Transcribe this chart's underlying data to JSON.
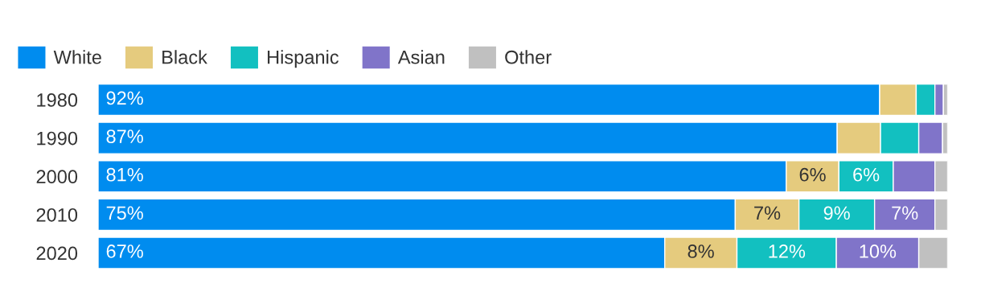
{
  "chart_data": {
    "type": "bar",
    "orientation": "horizontal",
    "stacked": true,
    "legend": "top left",
    "grid": false,
    "categories": [
      "1980",
      "1990",
      "2000",
      "2010",
      "2020"
    ],
    "series": [
      {
        "name": "White",
        "color": "#008cef",
        "values": [
          92,
          87,
          81,
          75,
          66.7
        ],
        "value_labels": [
          "92%",
          "87%",
          "81%",
          "75%",
          "67%"
        ]
      },
      {
        "name": "Black",
        "color": "#e5cb7e",
        "values": [
          4.3,
          5.1,
          6.2,
          7.5,
          8.5
        ],
        "value_labels": [
          null,
          null,
          "6%",
          "7%",
          "8%"
        ]
      },
      {
        "name": "Hispanic",
        "color": "#12c0c0",
        "values": [
          2.2,
          4.5,
          6.4,
          8.9,
          11.7
        ],
        "value_labels": [
          null,
          null,
          "6%",
          "9%",
          "12%"
        ]
      },
      {
        "name": "Asian",
        "color": "#8074c9",
        "values": [
          1.0,
          2.8,
          4.9,
          7.1,
          9.7
        ],
        "value_labels": [
          null,
          null,
          null,
          "7%",
          "10%"
        ]
      },
      {
        "name": "Other",
        "color": "#c0c0c0",
        "values": [
          0.5,
          0.6,
          1.5,
          1.5,
          3.4
        ]
      }
    ]
  }
}
